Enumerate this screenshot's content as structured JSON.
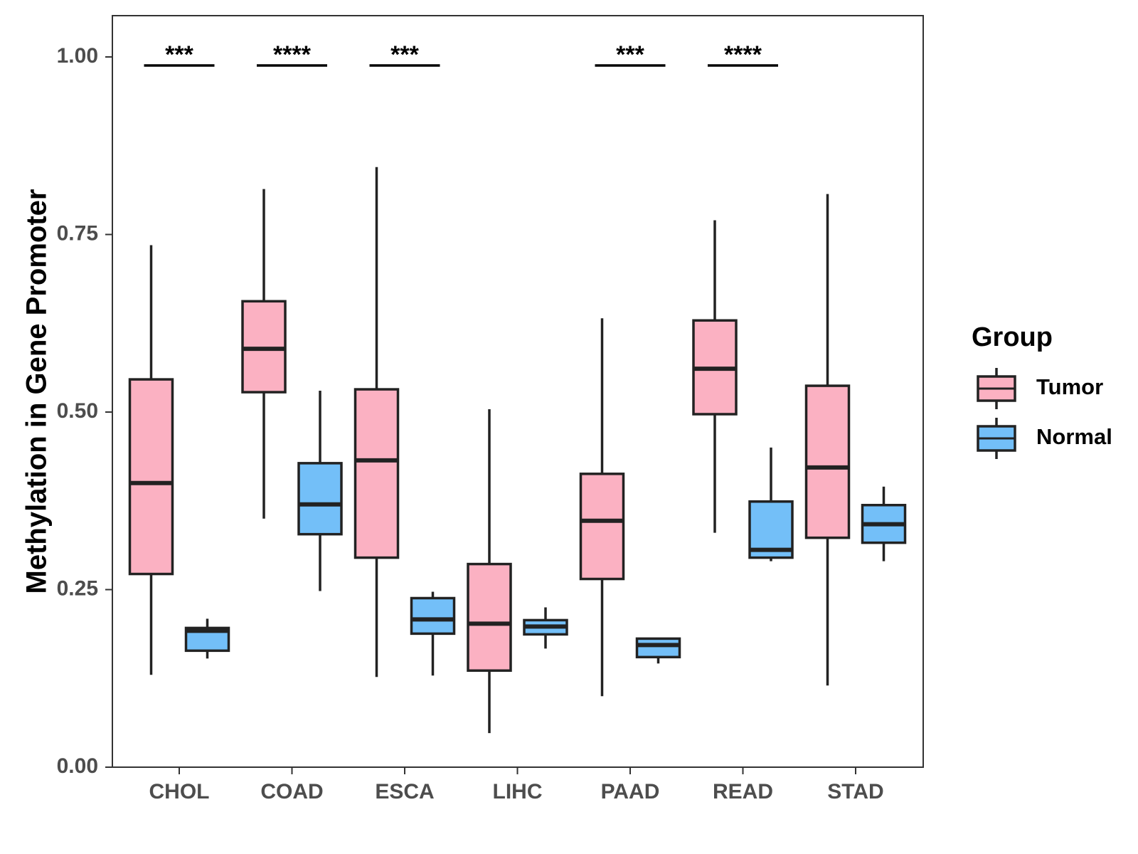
{
  "chart_data": {
    "type": "boxplot",
    "title": "",
    "xlabel": "",
    "ylabel": "Methylation in Gene Promoter",
    "ylim": [
      0,
      1.06
    ],
    "yticks": [
      0,
      0.25,
      0.5,
      0.75,
      1.0
    ],
    "ytick_labels": [
      "0.00",
      "0.25",
      "0.50",
      "0.75",
      "1.00"
    ],
    "categories": [
      "CHOL",
      "COAD",
      "ESCA",
      "LIHC",
      "PAAD",
      "READ",
      "STAD"
    ],
    "legend": {
      "title": "Group",
      "position": "right"
    },
    "series": [
      {
        "name": "Tumor",
        "color": "#FBB1C2",
        "boxes": [
          {
            "whisker_low": 0.13,
            "q1": 0.272,
            "median": 0.4,
            "q3": 0.546,
            "whisker_high": 0.735
          },
          {
            "whisker_low": 0.35,
            "q1": 0.528,
            "median": 0.589,
            "q3": 0.656,
            "whisker_high": 0.814
          },
          {
            "whisker_low": 0.127,
            "q1": 0.295,
            "median": 0.432,
            "q3": 0.532,
            "whisker_high": 0.845
          },
          {
            "whisker_low": 0.048,
            "q1": 0.136,
            "median": 0.202,
            "q3": 0.286,
            "whisker_high": 0.504
          },
          {
            "whisker_low": 0.1,
            "q1": 0.265,
            "median": 0.347,
            "q3": 0.413,
            "whisker_high": 0.632
          },
          {
            "whisker_low": 0.33,
            "q1": 0.497,
            "median": 0.561,
            "q3": 0.629,
            "whisker_high": 0.77
          },
          {
            "whisker_low": 0.115,
            "q1": 0.323,
            "median": 0.422,
            "q3": 0.537,
            "whisker_high": 0.807
          }
        ]
      },
      {
        "name": "Normal",
        "color": "#73BFF8",
        "boxes": [
          {
            "whisker_low": 0.153,
            "q1": 0.164,
            "median": 0.192,
            "q3": 0.196,
            "whisker_high": 0.209
          },
          {
            "whisker_low": 0.248,
            "q1": 0.328,
            "median": 0.37,
            "q3": 0.428,
            "whisker_high": 0.53
          },
          {
            "whisker_low": 0.129,
            "q1": 0.188,
            "median": 0.208,
            "q3": 0.238,
            "whisker_high": 0.247
          },
          {
            "whisker_low": 0.167,
            "q1": 0.187,
            "median": 0.198,
            "q3": 0.207,
            "whisker_high": 0.225
          },
          {
            "whisker_low": 0.146,
            "q1": 0.155,
            "median": 0.172,
            "q3": 0.181,
            "whisker_high": 0.181
          },
          {
            "whisker_low": 0.29,
            "q1": 0.295,
            "median": 0.306,
            "q3": 0.374,
            "whisker_high": 0.45
          },
          {
            "whisker_low": 0.29,
            "q1": 0.316,
            "median": 0.342,
            "q3": 0.369,
            "whisker_high": 0.395
          }
        ]
      }
    ],
    "significance": [
      {
        "category": "CHOL",
        "label": "***",
        "y": 0.988
      },
      {
        "category": "COAD",
        "label": "****",
        "y": 0.988
      },
      {
        "category": "ESCA",
        "label": "***",
        "y": 0.988
      },
      {
        "category": "PAAD",
        "label": "***",
        "y": 0.988
      },
      {
        "category": "READ",
        "label": "****",
        "y": 0.988
      }
    ]
  }
}
